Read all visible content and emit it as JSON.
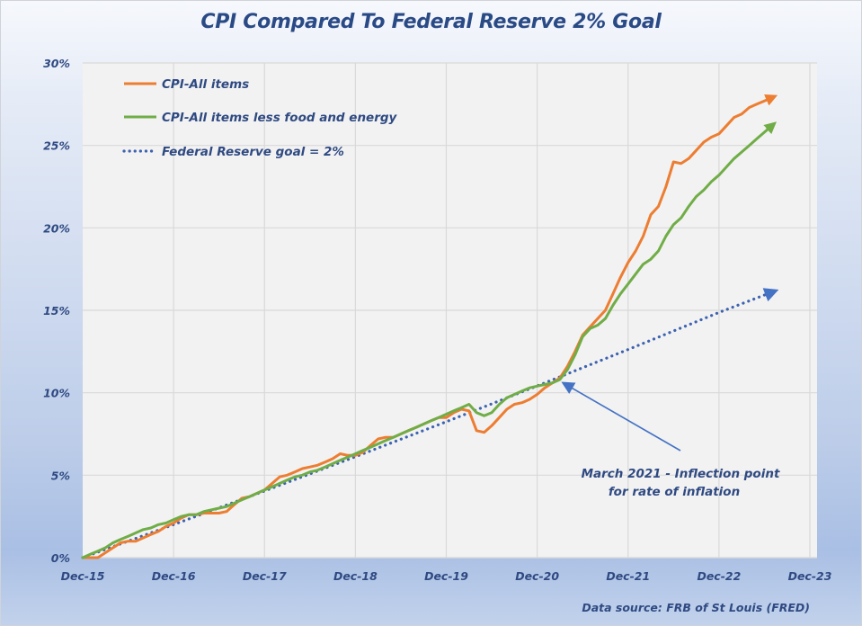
{
  "chart_data": {
    "type": "line",
    "title": "CPI Compared To Federal Reserve 2% Goal",
    "xlabel": "",
    "ylabel": "",
    "ylim": [
      0,
      30
    ],
    "y_ticks": [
      "0%",
      "5%",
      "10%",
      "15%",
      "20%",
      "25%",
      "30%"
    ],
    "y_tick_values": [
      0,
      5,
      10,
      15,
      20,
      25,
      30
    ],
    "x_ticks": [
      "Dec-15",
      "Dec-16",
      "Dec-17",
      "Dec-18",
      "Dec-19",
      "Dec-20",
      "Dec-21",
      "Dec-22",
      "Dec-23"
    ],
    "x_range_months": [
      0,
      96
    ],
    "x_unit": "months since Dec-15",
    "grid": true,
    "legend_position": "top-left",
    "series": [
      {
        "name": "CPI-All items",
        "color": "#ed7d31",
        "style": "solid",
        "end_arrow": true,
        "x": [
          0,
          1,
          2,
          3,
          4,
          5,
          6,
          7,
          8,
          9,
          10,
          11,
          12,
          13,
          14,
          15,
          16,
          17,
          18,
          19,
          20,
          21,
          22,
          23,
          24,
          25,
          26,
          27,
          28,
          29,
          30,
          31,
          32,
          33,
          34,
          35,
          36,
          37,
          38,
          39,
          40,
          41,
          42,
          43,
          44,
          45,
          46,
          47,
          48,
          49,
          50,
          51,
          52,
          53,
          54,
          55,
          56,
          57,
          58,
          59,
          60,
          61,
          62,
          63,
          64,
          65,
          66,
          67,
          68,
          69,
          70,
          71,
          72,
          73,
          74,
          75,
          76,
          77,
          78,
          79,
          80,
          81,
          82,
          83,
          84,
          85,
          86,
          87,
          88,
          89,
          90,
          91
        ],
        "values": [
          0,
          0.0,
          0.0,
          0.3,
          0.6,
          0.9,
          1.0,
          1.0,
          1.2,
          1.4,
          1.6,
          1.9,
          2.1,
          2.4,
          2.6,
          2.6,
          2.7,
          2.7,
          2.7,
          2.8,
          3.2,
          3.6,
          3.7,
          3.9,
          4.1,
          4.5,
          4.9,
          5.0,
          5.2,
          5.4,
          5.5,
          5.6,
          5.8,
          6.0,
          6.3,
          6.2,
          6.2,
          6.4,
          6.8,
          7.2,
          7.3,
          7.3,
          7.5,
          7.7,
          7.9,
          8.1,
          8.3,
          8.5,
          8.5,
          8.8,
          9.0,
          8.9,
          7.7,
          7.6,
          8.0,
          8.5,
          9.0,
          9.3,
          9.4,
          9.6,
          9.9,
          10.3,
          10.6,
          10.9,
          11.6,
          12.5,
          13.5,
          14.0,
          14.5,
          15.0,
          16.0,
          17.0,
          17.9,
          18.6,
          19.5,
          20.8,
          21.3,
          22.5,
          24.0,
          23.9,
          24.2,
          24.7,
          25.2,
          25.5,
          25.7,
          26.2,
          26.7,
          26.9,
          27.3,
          27.5,
          27.7,
          27.9
        ]
      },
      {
        "name": "CPI-All items less food and energy",
        "color": "#70ad47",
        "style": "solid",
        "end_arrow": true,
        "x": [
          0,
          1,
          2,
          3,
          4,
          5,
          6,
          7,
          8,
          9,
          10,
          11,
          12,
          13,
          14,
          15,
          16,
          17,
          18,
          19,
          20,
          21,
          22,
          23,
          24,
          25,
          26,
          27,
          28,
          29,
          30,
          31,
          32,
          33,
          34,
          35,
          36,
          37,
          38,
          39,
          40,
          41,
          42,
          43,
          44,
          45,
          46,
          47,
          48,
          49,
          50,
          51,
          52,
          53,
          54,
          55,
          56,
          57,
          58,
          59,
          60,
          61,
          62,
          63,
          64,
          65,
          66,
          67,
          68,
          69,
          70,
          71,
          72,
          73,
          74,
          75,
          76,
          77,
          78,
          79,
          80,
          81,
          82,
          83,
          84,
          85,
          86,
          87,
          88,
          89,
          90,
          91
        ],
        "values": [
          0,
          0.2,
          0.4,
          0.6,
          0.9,
          1.1,
          1.3,
          1.5,
          1.7,
          1.8,
          2.0,
          2.1,
          2.3,
          2.5,
          2.6,
          2.6,
          2.8,
          2.9,
          3.0,
          3.1,
          3.3,
          3.5,
          3.7,
          3.9,
          4.1,
          4.3,
          4.5,
          4.7,
          4.9,
          5.0,
          5.2,
          5.3,
          5.5,
          5.7,
          5.9,
          6.1,
          6.3,
          6.5,
          6.7,
          6.9,
          7.1,
          7.3,
          7.5,
          7.7,
          7.9,
          8.1,
          8.3,
          8.5,
          8.7,
          8.9,
          9.1,
          9.3,
          8.8,
          8.6,
          8.8,
          9.3,
          9.7,
          9.9,
          10.1,
          10.3,
          10.4,
          10.5,
          10.6,
          10.8,
          11.4,
          12.3,
          13.4,
          13.9,
          14.1,
          14.5,
          15.3,
          16.0,
          16.6,
          17.2,
          17.8,
          18.1,
          18.6,
          19.5,
          20.2,
          20.6,
          21.3,
          21.9,
          22.3,
          22.8,
          23.2,
          23.7,
          24.2,
          24.6,
          25.0,
          25.4,
          25.8,
          26.2
        ]
      },
      {
        "name": "Federal Reserve goal = 2%",
        "color": "#4472c4",
        "style": "dotted",
        "end_arrow": true,
        "x": [
          0,
          12,
          24,
          36,
          48,
          60,
          72,
          84,
          91
        ],
        "values": [
          0,
          2.0,
          4.04,
          6.12,
          8.24,
          10.41,
          12.62,
          14.87,
          16.1
        ]
      }
    ],
    "annotations": [
      {
        "text_line1": "March 2021 - Inflection point",
        "text_line2": "for rate of inflation",
        "points_to_month": 63,
        "points_to_value": 10.8
      }
    ]
  },
  "footer": {
    "source": "Data source: FRB of St Louis (FRED)"
  }
}
